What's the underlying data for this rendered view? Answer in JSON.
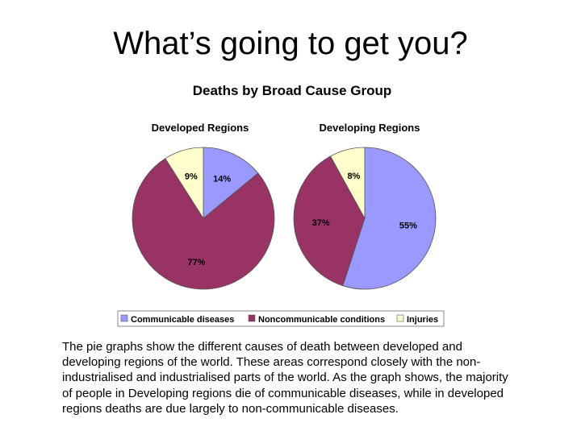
{
  "slide": {
    "title": "What’s going to get you?",
    "caption_lines": [
      "The pie graphs show the different causes of death between developed and",
      "developing regions of the world. These areas correspond closely with the non-",
      "industrialised and industrialised parts of the world. As the graph shows, the majority",
      "of people in Developing regions die of communicable diseases, while in developed",
      "regions deaths are due largely to non-communicable diseases."
    ]
  },
  "chart_title": "Deaths by Broad Cause Group",
  "legend": {
    "items": [
      {
        "label": "Communicable diseases",
        "color": "#9999ff"
      },
      {
        "label": "Noncommunicable conditions",
        "color": "#993366"
      },
      {
        "label": "Injuries",
        "color": "#ffffcc"
      }
    ],
    "placement": "bottom"
  },
  "chart_data": [
    {
      "type": "pie",
      "title": "Developed Regions",
      "categories": [
        "Communicable diseases",
        "Noncommunicable conditions",
        "Injuries"
      ],
      "values": [
        14,
        77,
        9
      ],
      "labels": [
        "14%",
        "77%",
        "9%"
      ],
      "colors": [
        "#9999ff",
        "#993366",
        "#ffffcc"
      ]
    },
    {
      "type": "pie",
      "title": "Developing Regions",
      "categories": [
        "Communicable diseases",
        "Noncommunicable conditions",
        "Injuries"
      ],
      "values": [
        55,
        37,
        8
      ],
      "labels": [
        "55%",
        "37%",
        "8%"
      ],
      "colors": [
        "#9999ff",
        "#993366",
        "#ffffcc"
      ]
    }
  ]
}
